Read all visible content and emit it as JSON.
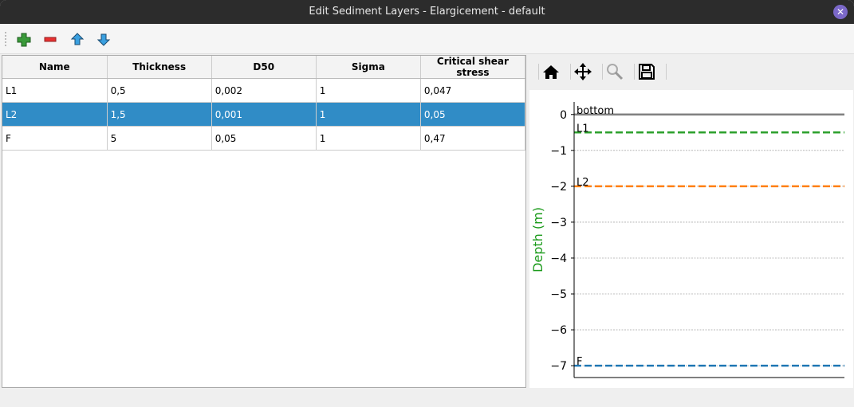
{
  "window": {
    "title": "Edit Sediment Layers - Elargicement - default",
    "close_icon": "close-icon"
  },
  "toolbar": {
    "items": [
      {
        "icon": "add-icon",
        "color": "#3a9a3a"
      },
      {
        "icon": "remove-icon",
        "color": "#e03030"
      },
      {
        "icon": "move-up-icon",
        "color": "#2a8ad0"
      },
      {
        "icon": "move-down-icon",
        "color": "#2a8ad0"
      }
    ]
  },
  "table": {
    "columns": [
      "Name",
      "Thickness",
      "D50",
      "Sigma",
      "Critical shear stress"
    ],
    "rows": [
      [
        "L1",
        "0,5",
        "0,002",
        "1",
        "0,047"
      ],
      [
        "L2",
        "1,5",
        "0,001",
        "1",
        "0,05"
      ],
      [
        "F",
        "5",
        "0,05",
        "1",
        "0,47"
      ]
    ],
    "selected_row": 1
  },
  "plot_toolbar": {
    "items": [
      "home-icon",
      "pan-icon",
      "zoom-icon",
      "save-icon"
    ]
  },
  "chart_data": {
    "type": "line",
    "ylabel": "Depth (m)",
    "ylim": [
      -7.33,
      0.35
    ],
    "yticks": [
      0,
      -1,
      -2,
      -3,
      -4,
      -5,
      -6,
      -7
    ],
    "ytick_labels": [
      "0",
      "−1",
      "−2",
      "−3",
      "−4",
      "−5",
      "−6",
      "−7"
    ],
    "grid": "horizontal dotted",
    "series": [
      {
        "name": "bottom",
        "y": 0,
        "color": "#808080",
        "style": "solid"
      },
      {
        "name": "L1",
        "y": -0.5,
        "color": "#2ca02c",
        "style": "dashed"
      },
      {
        "name": "L2",
        "y": -2,
        "color": "#ff7f0e",
        "style": "dashed"
      },
      {
        "name": "F",
        "y": -7,
        "color": "#1f77b4",
        "style": "dashed"
      }
    ]
  }
}
